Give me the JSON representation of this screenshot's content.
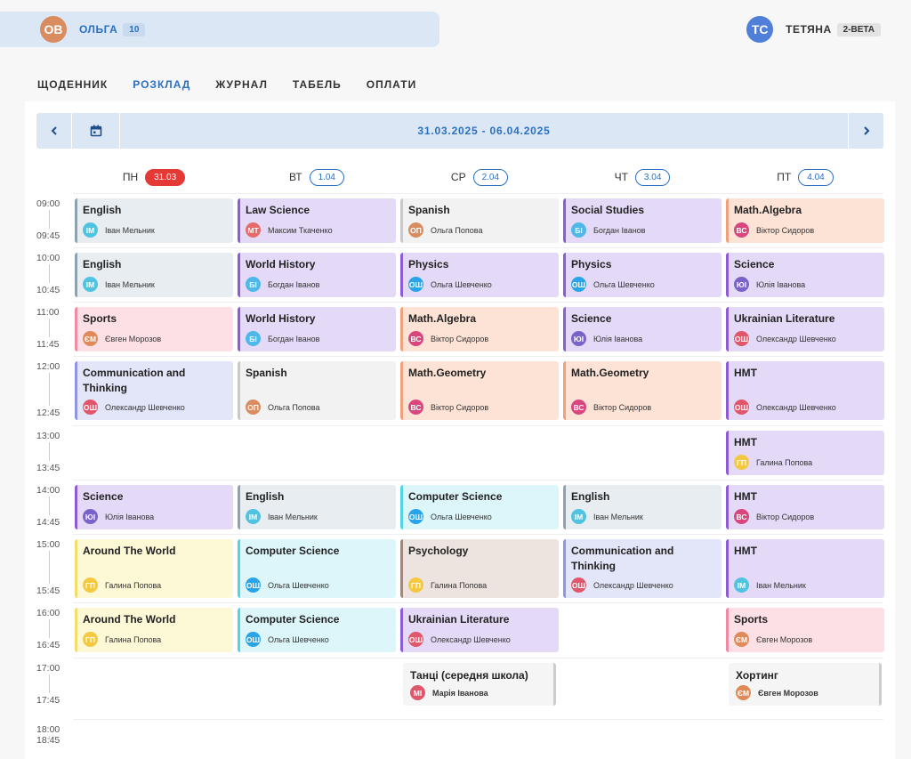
{
  "header": {
    "student": {
      "initials": "ОВ",
      "name": "ОЛЬГА",
      "badge": "10",
      "color": "#d98c5f"
    },
    "teacher": {
      "initials": "ТС",
      "name": "ТЕТЯНА",
      "badge": "2-BETA",
      "color": "#4f7fd8"
    }
  },
  "tabs": [
    "ЩОДЕННИК",
    "РОЗКЛАД",
    "ЖУРНАЛ",
    "ТАБЕЛЬ",
    "ОПЛАТИ"
  ],
  "active_tab": 1,
  "week": {
    "range": "31.03.2025 - 06.04.2025"
  },
  "days": [
    {
      "label": "ПН",
      "date": "31.03",
      "today": true
    },
    {
      "label": "ВТ",
      "date": "1.04",
      "today": false
    },
    {
      "label": "СР",
      "date": "2.04",
      "today": false
    },
    {
      "label": "ЧТ",
      "date": "3.04",
      "today": false
    },
    {
      "label": "ПТ",
      "date": "4.04",
      "today": false
    }
  ],
  "slots": [
    {
      "start": "09:00",
      "end": "09:45"
    },
    {
      "start": "10:00",
      "end": "10:45"
    },
    {
      "start": "11:00",
      "end": "11:45"
    },
    {
      "start": "12:00",
      "end": "12:45"
    },
    {
      "start": "13:00",
      "end": "13:45"
    },
    {
      "start": "14:00",
      "end": "14:45"
    },
    {
      "start": "15:00",
      "end": "15:45"
    },
    {
      "start": "16:00",
      "end": "16:45"
    },
    {
      "start": "17:00",
      "end": "17:45"
    },
    {
      "start": "18:00",
      "end": "18:45"
    }
  ],
  "lessons": [
    {
      "day": 0,
      "slot": 0,
      "title": "English",
      "initials": "ІМ",
      "teacher": "Іван Мельник",
      "bg": "#e8edf1",
      "border": "#8fa1ad",
      "avatar": "#4fc3e0"
    },
    {
      "day": 1,
      "slot": 0,
      "title": "Law Science",
      "initials": "МТ",
      "teacher": "Максим Ткаченко",
      "bg": "#e4d9f7",
      "border": "#8e5bd6",
      "avatar": "#e56b6b"
    },
    {
      "day": 2,
      "slot": 0,
      "title": "Spanish",
      "initials": "ОП",
      "teacher": "Ольга Попова",
      "bg": "#f2f2f2",
      "border": "#c9c9c9",
      "avatar": "#d98c5f"
    },
    {
      "day": 3,
      "slot": 0,
      "title": "Social Studies",
      "initials": "БІ",
      "teacher": "Богдан Іванов",
      "bg": "#e4d9f7",
      "border": "#8e5bd6",
      "avatar": "#4fb8e8"
    },
    {
      "day": 4,
      "slot": 0,
      "title": "Math.Algebra",
      "initials": "ВС",
      "teacher": "Віктор Сидоров",
      "bg": "#fde3d6",
      "border": "#f0a07a",
      "avatar": "#d8467d"
    },
    {
      "day": 0,
      "slot": 1,
      "title": "English",
      "initials": "ІМ",
      "teacher": "Іван Мельник",
      "bg": "#e8edf1",
      "border": "#8fa1ad",
      "avatar": "#4fc3e0"
    },
    {
      "day": 1,
      "slot": 1,
      "title": "World History",
      "initials": "БІ",
      "teacher": "Богдан Іванов",
      "bg": "#e4d9f7",
      "border": "#8e5bd6",
      "avatar": "#4fb8e8"
    },
    {
      "day": 2,
      "slot": 1,
      "title": "Physics",
      "initials": "ОШ",
      "teacher": "Ольга Шевченко",
      "bg": "#e4d9f7",
      "border": "#8e5bd6",
      "avatar": "#2aa4e8"
    },
    {
      "day": 3,
      "slot": 1,
      "title": "Physics",
      "initials": "ОШ",
      "teacher": "Ольга Шевченко",
      "bg": "#e4d9f7",
      "border": "#8e5bd6",
      "avatar": "#2aa4e8"
    },
    {
      "day": 4,
      "slot": 1,
      "title": "Science",
      "initials": "ЮІ",
      "teacher": "Юлія Іванова",
      "bg": "#e4d9f7",
      "border": "#8e5bd6",
      "avatar": "#7b62c9"
    },
    {
      "day": 0,
      "slot": 2,
      "title": "Sports",
      "initials": "ЄМ",
      "teacher": "Євген Морозов",
      "bg": "#fde0e6",
      "border": "#f08aa3",
      "avatar": "#e08a5a"
    },
    {
      "day": 1,
      "slot": 2,
      "title": "World History",
      "initials": "БІ",
      "teacher": "Богдан Іванов",
      "bg": "#e4d9f7",
      "border": "#8e5bd6",
      "avatar": "#4fb8e8"
    },
    {
      "day": 2,
      "slot": 2,
      "title": "Math.Algebra",
      "initials": "ВС",
      "teacher": "Віктор Сидоров",
      "bg": "#fde3d6",
      "border": "#f0a07a",
      "avatar": "#d8467d"
    },
    {
      "day": 3,
      "slot": 2,
      "title": "Science",
      "initials": "ЮІ",
      "teacher": "Юлія Іванова",
      "bg": "#e4d9f7",
      "border": "#8e5bd6",
      "avatar": "#7b62c9"
    },
    {
      "day": 4,
      "slot": 2,
      "title": "Ukrainian Literature",
      "initials": "ОШ",
      "teacher": "Олександр Шевченко",
      "bg": "#e4d9f7",
      "border": "#8e5bd6",
      "avatar": "#e0566b"
    },
    {
      "day": 0,
      "slot": 3,
      "title": "Communication and Thinking",
      "initials": "ОШ",
      "teacher": "Олександр Шевченко",
      "bg": "#e3e5f8",
      "border": "#8f95e0",
      "avatar": "#e0566b"
    },
    {
      "day": 1,
      "slot": 3,
      "title": "Spanish",
      "initials": "ОП",
      "teacher": "Ольга Попова",
      "bg": "#f2f2f2",
      "border": "#c9c9c9",
      "avatar": "#d98c5f"
    },
    {
      "day": 2,
      "slot": 3,
      "title": "Math.Geometry",
      "initials": "ВС",
      "teacher": "Віктор Сидоров",
      "bg": "#fde3d6",
      "border": "#f0a07a",
      "avatar": "#d8467d"
    },
    {
      "day": 3,
      "slot": 3,
      "title": "Math.Geometry",
      "initials": "ВС",
      "teacher": "Віктор Сидоров",
      "bg": "#fde3d6",
      "border": "#f0a07a",
      "avatar": "#d8467d"
    },
    {
      "day": 4,
      "slot": 3,
      "title": "НМТ",
      "initials": "ОШ",
      "teacher": "Олександр Шевченко",
      "bg": "#e4d9f7",
      "border": "#8e5bd6",
      "avatar": "#e0566b"
    },
    {
      "day": 4,
      "slot": 4,
      "title": "НМТ",
      "initials": "ГП",
      "teacher": "Галина Попова",
      "bg": "#e4d9f7",
      "border": "#8e5bd6",
      "avatar": "#f5c842"
    },
    {
      "day": 0,
      "slot": 5,
      "title": "Science",
      "initials": "ЮІ",
      "teacher": "Юлія Іванова",
      "bg": "#e4d9f7",
      "border": "#8e5bd6",
      "avatar": "#7b62c9"
    },
    {
      "day": 1,
      "slot": 5,
      "title": "English",
      "initials": "ІМ",
      "teacher": "Іван Мельник",
      "bg": "#e8edf1",
      "border": "#8fa1ad",
      "avatar": "#4fc3e0"
    },
    {
      "day": 2,
      "slot": 5,
      "title": "Computer Science",
      "initials": "ОШ",
      "teacher": "Ольга Шевченко",
      "bg": "#dcf6fa",
      "border": "#55d3e6",
      "avatar": "#2aa4e8"
    },
    {
      "day": 3,
      "slot": 5,
      "title": "English",
      "initials": "ІМ",
      "teacher": "Іван Мельник",
      "bg": "#e8edf1",
      "border": "#8fa1ad",
      "avatar": "#4fc3e0"
    },
    {
      "day": 4,
      "slot": 5,
      "title": "НМТ",
      "initials": "ВС",
      "teacher": "Віктор Сидоров",
      "bg": "#e4d9f7",
      "border": "#8e5bd6",
      "avatar": "#d8467d"
    },
    {
      "day": 0,
      "slot": 6,
      "title": "Around The World",
      "initials": "ГП",
      "teacher": "Галина Попова",
      "bg": "#fdf8d6",
      "border": "#f3dd6a",
      "avatar": "#f5c842"
    },
    {
      "day": 1,
      "slot": 6,
      "title": "Computer Science",
      "initials": "ОШ",
      "teacher": "Ольга Шевченко",
      "bg": "#dcf6fa",
      "border": "#55d3e6",
      "avatar": "#2aa4e8"
    },
    {
      "day": 2,
      "slot": 6,
      "title": "Psychology",
      "initials": "ГП",
      "teacher": "Галина Попова",
      "bg": "#ede3df",
      "border": "#a1887f",
      "avatar": "#f5c842"
    },
    {
      "day": 3,
      "slot": 6,
      "title": "Communication and Thinking",
      "initials": "ОШ",
      "teacher": "Олександр Шевченко",
      "bg": "#e3e5f8",
      "border": "#8f95e0",
      "avatar": "#e0566b"
    },
    {
      "day": 4,
      "slot": 6,
      "title": "НМТ",
      "initials": "ІМ",
      "teacher": "Іван Мельник",
      "bg": "#e4d9f7",
      "border": "#8e5bd6",
      "avatar": "#4fc3e0"
    },
    {
      "day": 0,
      "slot": 7,
      "title": "Around The World",
      "initials": "ГП",
      "teacher": "Галина Попова",
      "bg": "#fdf8d6",
      "border": "#f3dd6a",
      "avatar": "#f5c842"
    },
    {
      "day": 1,
      "slot": 7,
      "title": "Computer Science",
      "initials": "ОШ",
      "teacher": "Ольга Шевченко",
      "bg": "#dcf6fa",
      "border": "#55d3e6",
      "avatar": "#2aa4e8"
    },
    {
      "day": 2,
      "slot": 7,
      "title": "Ukrainian Literature",
      "initials": "ОШ",
      "teacher": "Олександр Шевченко",
      "bg": "#e4d9f7",
      "border": "#8e5bd6",
      "avatar": "#e0566b"
    },
    {
      "day": 4,
      "slot": 7,
      "title": "Sports",
      "initials": "ЄМ",
      "teacher": "Євген Морозов",
      "bg": "#fde0e6",
      "border": "#f08aa3",
      "avatar": "#e08a5a"
    }
  ],
  "extras": [
    {
      "day": 2,
      "slot": 8,
      "title": "Танці (середня школа)",
      "initials": "МІ",
      "teacher": "Марія Іванова",
      "avatar": "#e0566b"
    },
    {
      "day": 4,
      "slot": 8,
      "title": "Хортинг",
      "initials": "ЄМ",
      "teacher": "Євген Морозов",
      "avatar": "#e08a5a"
    }
  ]
}
